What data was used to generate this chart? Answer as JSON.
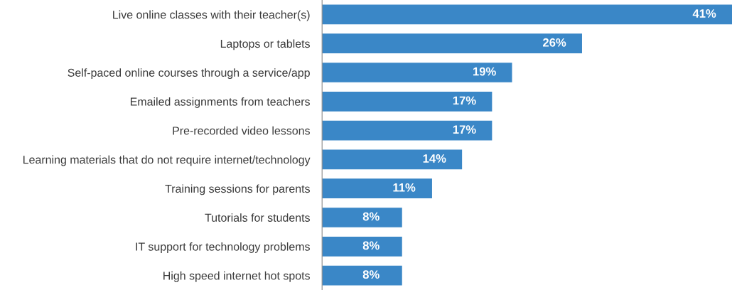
{
  "chart_data": {
    "type": "bar",
    "orientation": "horizontal",
    "categories": [
      "Live online classes with their teacher(s)",
      "Laptops or tablets",
      "Self-paced online courses through a service/app",
      "Emailed assignments from teachers",
      "Pre-recorded video lessons",
      "Learning materials that do not require internet/technology",
      "Training sessions for parents",
      "Tutorials for students",
      "IT support for technology problems",
      "High speed internet hot spots"
    ],
    "values": [
      41,
      26,
      19,
      17,
      17,
      14,
      11,
      8,
      8,
      8
    ],
    "value_labels": [
      "41%",
      "26%",
      "19%",
      "17%",
      "17%",
      "14%",
      "11%",
      "8%",
      "8%",
      "8%"
    ],
    "color": "#3a87c7",
    "grid": false,
    "legend": false
  }
}
